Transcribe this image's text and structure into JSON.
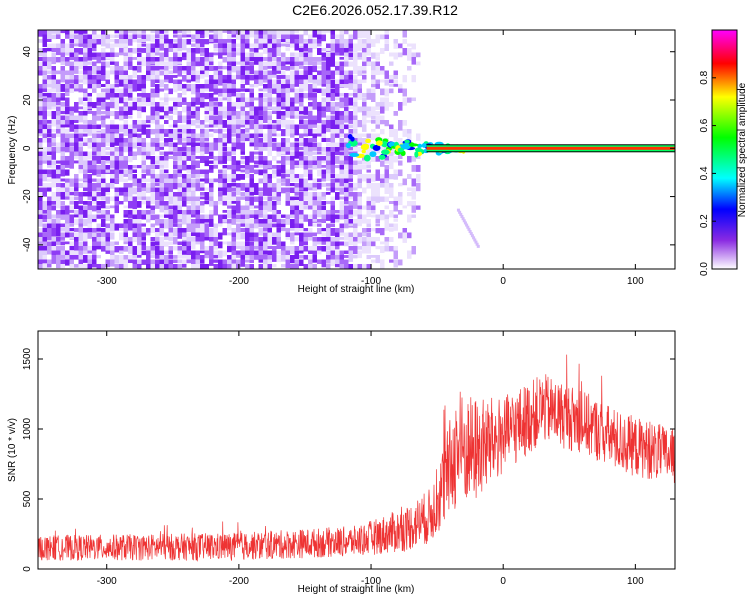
{
  "title": "C2E6.2026.052.17.39.R12",
  "chart_data": [
    {
      "type": "heatmap",
      "name": "spectrogram",
      "xlabel": "Height of straight line (km)",
      "ylabel": "Frequency (Hz)",
      "xlim": [
        -352,
        130
      ],
      "ylim": [
        -50,
        49
      ],
      "xticks": [
        -300,
        -200,
        -100,
        0,
        100
      ],
      "yticks": [
        -40,
        -20,
        0,
        20,
        40
      ],
      "noise_region_x": [
        -352,
        -65
      ],
      "signal_line": {
        "freq": 0,
        "x_start": -118,
        "x_end": 130
      },
      "faint_tail": {
        "x_start": -35,
        "x_end": -20,
        "freq_start": -25,
        "freq_end": -40
      },
      "colorbar": {
        "label": "Normalized spectral amplitude",
        "range": [
          0,
          1
        ],
        "ticks": [
          0.0,
          0.2,
          0.4,
          0.6,
          0.8
        ]
      }
    },
    {
      "type": "line",
      "name": "snr",
      "xlabel": "Height of straight line (km)",
      "ylabel": "SNR (10 * v/v)",
      "xlim": [
        -352,
        130
      ],
      "ylim": [
        0,
        1700
      ],
      "xticks": [
        -300,
        -200,
        -100,
        0,
        100
      ],
      "yticks": [
        0,
        500,
        1000,
        1500
      ],
      "color": "#ee3333",
      "envelope": [
        {
          "x": -352,
          "base": 150,
          "spread": 90
        },
        {
          "x": -200,
          "base": 160,
          "spread": 100
        },
        {
          "x": -110,
          "base": 200,
          "spread": 110
        },
        {
          "x": -75,
          "base": 280,
          "spread": 160
        },
        {
          "x": -55,
          "base": 380,
          "spread": 200
        },
        {
          "x": -45,
          "base": 600,
          "spread": 300
        },
        {
          "x": -35,
          "base": 850,
          "spread": 420
        },
        {
          "x": -20,
          "base": 850,
          "spread": 380
        },
        {
          "x": 0,
          "base": 950,
          "spread": 280
        },
        {
          "x": 30,
          "base": 1150,
          "spread": 250
        },
        {
          "x": 60,
          "base": 1050,
          "spread": 230
        },
        {
          "x": 90,
          "base": 900,
          "spread": 220
        },
        {
          "x": 130,
          "base": 800,
          "spread": 200
        }
      ]
    }
  ]
}
